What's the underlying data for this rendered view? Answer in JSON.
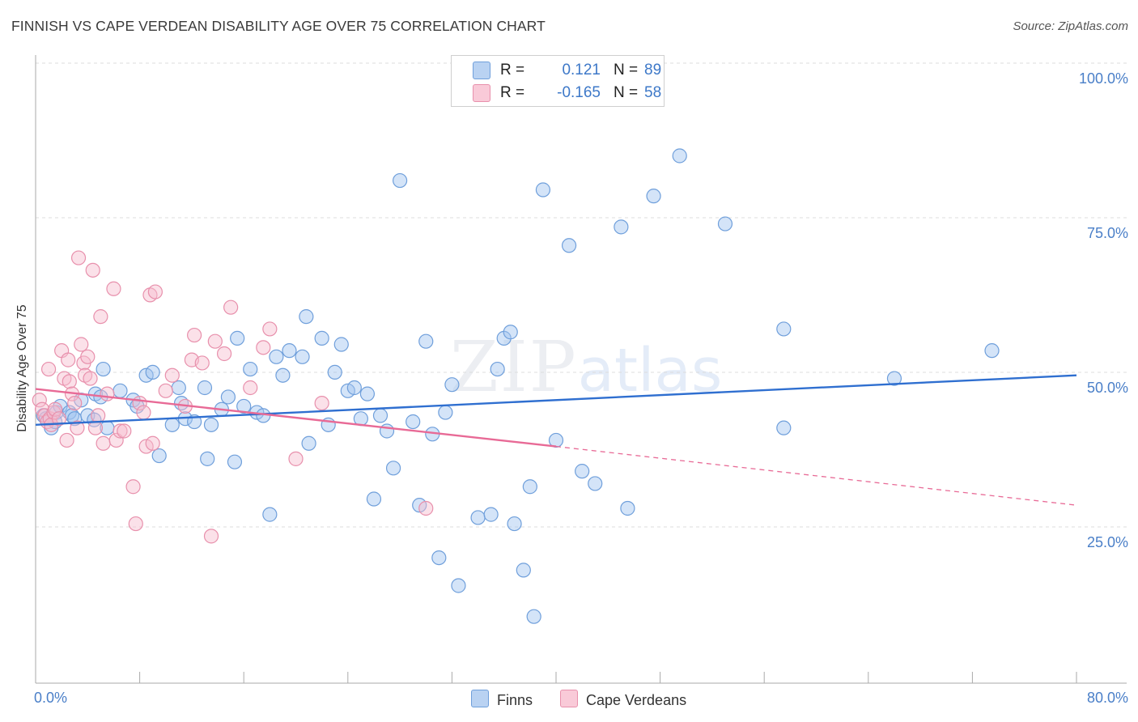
{
  "chart_data": {
    "type": "scatter",
    "title": "FINNISH VS CAPE VERDEAN DISABILITY AGE OVER 75 CORRELATION CHART",
    "source": "Source: ZipAtlas.com",
    "xlabel": "",
    "ylabel": "Disability Age Over 75",
    "xlim": [
      0,
      80
    ],
    "ylim": [
      0,
      105
    ],
    "x_tick_labels": [
      "0.0%",
      "80.0%"
    ],
    "y_tick_labels": [
      "100.0%",
      "75.0%",
      "50.0%",
      "25.0%"
    ],
    "y_tick_values": [
      100,
      75,
      50,
      25
    ],
    "grid": "horizontal dashed",
    "watermark": {
      "zip": "ZIP",
      "atlas": "atlas"
    },
    "legend": {
      "rows": [
        {
          "r_label": "R =",
          "r_value": "0.121",
          "n_label": "N =",
          "n_value": "89"
        },
        {
          "r_label": "R =",
          "r_value": "-0.165",
          "n_label": "N =",
          "n_value": "58"
        }
      ]
    },
    "series": [
      {
        "name": "Finns",
        "color": "#8fb8e8",
        "line_color": "#2f6fd0",
        "trend": {
          "x": [
            0,
            80
          ],
          "y": [
            44.0,
            52.0
          ]
        },
        "points": [
          [
            0.6,
            45.5
          ],
          [
            0.8,
            45.0
          ],
          [
            1.2,
            43.5
          ],
          [
            1.6,
            46.0
          ],
          [
            1.5,
            44.5
          ],
          [
            1.9,
            47.0
          ],
          [
            2.6,
            46.0
          ],
          [
            2.8,
            45.5
          ],
          [
            3.0,
            45.0
          ],
          [
            3.5,
            48.0
          ],
          [
            4.0,
            45.5
          ],
          [
            4.5,
            44.8
          ],
          [
            4.6,
            49.0
          ],
          [
            5.0,
            48.5
          ],
          [
            5.5,
            43.5
          ],
          [
            5.2,
            53.0
          ],
          [
            6.5,
            49.5
          ],
          [
            7.5,
            48.0
          ],
          [
            7.8,
            47.0
          ],
          [
            8.5,
            52.0
          ],
          [
            9.0,
            52.5
          ],
          [
            9.5,
            39.0
          ],
          [
            10.5,
            44.0
          ],
          [
            11.0,
            50.0
          ],
          [
            11.2,
            47.5
          ],
          [
            11.5,
            45.0
          ],
          [
            12.2,
            44.5
          ],
          [
            13.0,
            50.0
          ],
          [
            13.2,
            38.5
          ],
          [
            13.5,
            44.0
          ],
          [
            14.3,
            46.5
          ],
          [
            14.8,
            48.5
          ],
          [
            15.3,
            38.0
          ],
          [
            15.5,
            58.0
          ],
          [
            16.0,
            47.0
          ],
          [
            16.5,
            53.0
          ],
          [
            17.0,
            46.0
          ],
          [
            17.5,
            45.5
          ],
          [
            18.0,
            29.5
          ],
          [
            18.5,
            55.0
          ],
          [
            19.0,
            52.0
          ],
          [
            19.5,
            56.0
          ],
          [
            20.5,
            55.0
          ],
          [
            20.8,
            61.5
          ],
          [
            21.0,
            41.0
          ],
          [
            22.0,
            58.0
          ],
          [
            22.5,
            44.0
          ],
          [
            23.0,
            52.5
          ],
          [
            23.5,
            57.0
          ],
          [
            24.0,
            49.5
          ],
          [
            24.5,
            50.0
          ],
          [
            25.0,
            45.0
          ],
          [
            25.5,
            49.0
          ],
          [
            26.0,
            32.0
          ],
          [
            26.5,
            45.5
          ],
          [
            27.0,
            43.0
          ],
          [
            27.5,
            37.0
          ],
          [
            28.0,
            83.5
          ],
          [
            29.0,
            44.5
          ],
          [
            29.5,
            31.0
          ],
          [
            30.0,
            57.5
          ],
          [
            30.5,
            42.5
          ],
          [
            31.0,
            22.5
          ],
          [
            31.5,
            46.0
          ],
          [
            32.0,
            50.5
          ],
          [
            32.5,
            18.0
          ],
          [
            34.0,
            29.0
          ],
          [
            35.0,
            29.5
          ],
          [
            35.5,
            53.0
          ],
          [
            36.0,
            58.0
          ],
          [
            36.5,
            59.0
          ],
          [
            36.8,
            28.0
          ],
          [
            37.5,
            20.5
          ],
          [
            38.0,
            34.0
          ],
          [
            38.3,
            13.0
          ],
          [
            39.0,
            82.0
          ],
          [
            40.0,
            41.5
          ],
          [
            41.0,
            73.0
          ],
          [
            42.0,
            36.5
          ],
          [
            43.0,
            34.5
          ],
          [
            45.0,
            76.0
          ],
          [
            45.5,
            30.5
          ],
          [
            47.5,
            81.0
          ],
          [
            49.5,
            87.5
          ],
          [
            53.0,
            76.5
          ],
          [
            57.5,
            59.5
          ],
          [
            57.5,
            43.5
          ],
          [
            66.0,
            51.5
          ],
          [
            73.5,
            56.0
          ]
        ]
      },
      {
        "name": "Cape Verdeans",
        "color": "#f4b6c8",
        "line_color": "#e86a96",
        "trend": {
          "x": [
            0,
            40
          ],
          "y": [
            49.8,
            40.5
          ]
        },
        "trend_dashed": {
          "x": [
            40,
            80
          ],
          "y": [
            40.5,
            31.0
          ]
        },
        "points": [
          [
            0.3,
            48.0
          ],
          [
            0.5,
            46.5
          ],
          [
            0.7,
            45.5
          ],
          [
            0.9,
            44.5
          ],
          [
            1.0,
            53.0
          ],
          [
            1.1,
            45.0
          ],
          [
            1.2,
            44.0
          ],
          [
            1.4,
            46.0
          ],
          [
            1.5,
            46.5
          ],
          [
            1.8,
            45.0
          ],
          [
            2.0,
            56.0
          ],
          [
            2.2,
            51.5
          ],
          [
            2.4,
            41.5
          ],
          [
            2.5,
            54.5
          ],
          [
            2.6,
            51.0
          ],
          [
            2.8,
            49.0
          ],
          [
            3.0,
            47.5
          ],
          [
            3.2,
            43.5
          ],
          [
            3.3,
            71.0
          ],
          [
            3.5,
            57.0
          ],
          [
            3.7,
            54.0
          ],
          [
            3.8,
            52.0
          ],
          [
            4.0,
            55.0
          ],
          [
            4.2,
            51.5
          ],
          [
            4.4,
            69.0
          ],
          [
            4.6,
            43.5
          ],
          [
            4.8,
            45.5
          ],
          [
            5.0,
            61.5
          ],
          [
            5.2,
            41.0
          ],
          [
            5.5,
            49.0
          ],
          [
            6.0,
            66.0
          ],
          [
            6.2,
            41.5
          ],
          [
            6.5,
            43.0
          ],
          [
            7.5,
            34.0
          ],
          [
            7.7,
            28.0
          ],
          [
            8.0,
            47.5
          ],
          [
            8.3,
            46.0
          ],
          [
            8.5,
            40.5
          ],
          [
            8.8,
            65.0
          ],
          [
            9.0,
            41.0
          ],
          [
            9.2,
            65.5
          ],
          [
            10.0,
            49.5
          ],
          [
            10.5,
            52.0
          ],
          [
            11.5,
            47.0
          ],
          [
            12.0,
            54.5
          ],
          [
            12.2,
            58.5
          ],
          [
            12.8,
            54.0
          ],
          [
            13.5,
            26.0
          ],
          [
            13.8,
            57.5
          ],
          [
            14.5,
            55.5
          ],
          [
            15.0,
            63.0
          ],
          [
            16.5,
            50.0
          ],
          [
            17.5,
            56.5
          ],
          [
            18.0,
            59.5
          ],
          [
            20.0,
            38.5
          ],
          [
            30.0,
            30.5
          ],
          [
            22.0,
            47.5
          ],
          [
            6.8,
            43.0
          ]
        ]
      }
    ]
  }
}
